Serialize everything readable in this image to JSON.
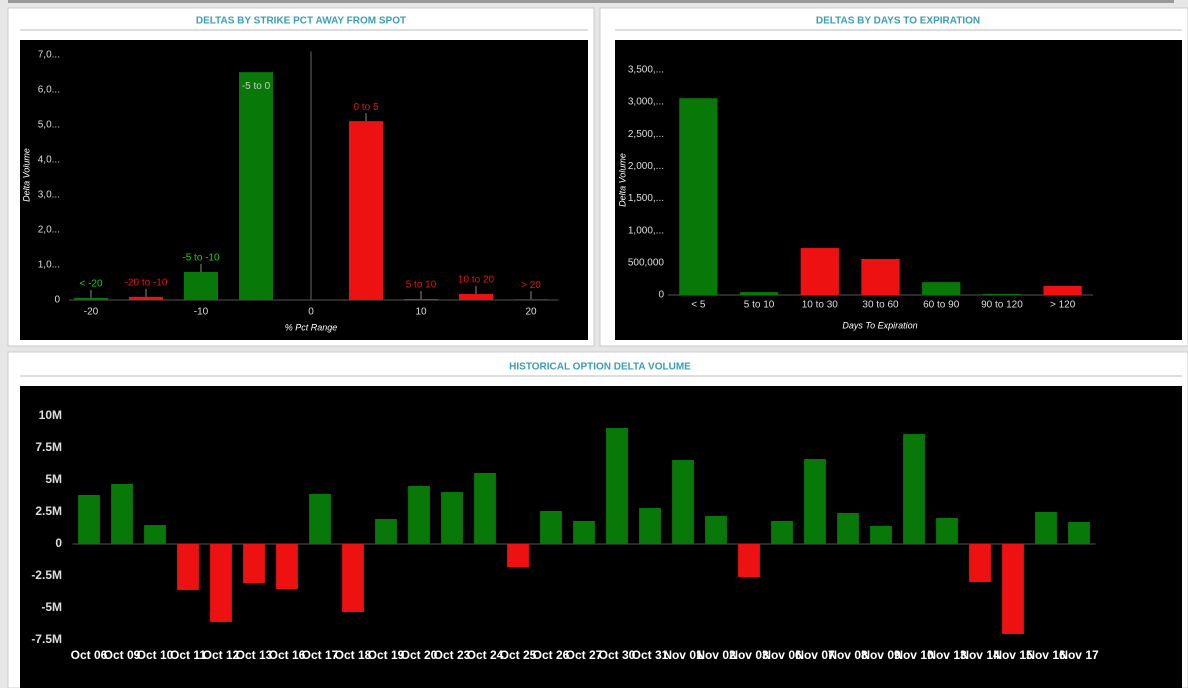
{
  "chart_data": [
    {
      "type": "bar",
      "title": "DELTAS BY STRIKE PCT AWAY FROM SPOT",
      "x_label": "% Pct Range",
      "y_label": "Delta Volume",
      "categories": [
        "< -20",
        "-20 to -10",
        "-5 to -10",
        "-5 to 0",
        "0 to 5",
        "5 to 10",
        "10 to 20",
        "> 20"
      ],
      "x": [
        -20,
        -15,
        -10,
        -5,
        5,
        10,
        15,
        20
      ],
      "values": [
        60000,
        90000,
        800000,
        6510000,
        5110000,
        30000,
        170000,
        20000
      ],
      "colors": [
        "#087808",
        "#ee1111",
        "#087808",
        "#087808",
        "#ee1111",
        "#ee1111",
        "#ee1111",
        "#ee1111"
      ],
      "xlim": [
        -22,
        22.5
      ],
      "xticks": [
        -20,
        -10,
        0,
        10,
        20
      ],
      "ylim": [
        0,
        7100000
      ],
      "yticks": [
        0,
        {
          "value": 1000000,
          "label": "1,0..."
        },
        {
          "value": 2000000,
          "label": "2,0..."
        },
        {
          "value": 3000000,
          "label": "3,0..."
        },
        {
          "value": 4000000,
          "label": "4,0..."
        },
        {
          "value": 5000000,
          "label": "5,0..."
        },
        {
          "value": 6000000,
          "label": "6,0..."
        },
        {
          "value": 7000000,
          "label": "7,0..."
        }
      ],
      "zero_line": true
    },
    {
      "type": "bar",
      "title": "DELTAS BY DAYS TO EXPIRATION",
      "x_label": "Days To Expiration",
      "y_label": "Delta Volume",
      "categories": [
        "< 5",
        "5 to 10",
        "10 to 30",
        "30 to 60",
        "60 to 90",
        "90 to 120",
        "> 120"
      ],
      "values": [
        3060000,
        45000,
        730000,
        560000,
        200000,
        15000,
        140000
      ],
      "colors": [
        "#087808",
        "#087808",
        "#ee1111",
        "#ee1111",
        "#087808",
        "#087808",
        "#ee1111"
      ],
      "ylim": [
        0,
        3650000
      ],
      "yticks": [
        0,
        {
          "value": 500000,
          "label": "500,000"
        },
        {
          "value": 1000000,
          "label": "1,000,..."
        },
        {
          "value": 1500000,
          "label": "1,500,..."
        },
        {
          "value": 2000000,
          "label": "2,000,..."
        },
        {
          "value": 2500000,
          "label": "2,500,..."
        },
        {
          "value": 3000000,
          "label": "3,000,..."
        },
        {
          "value": 3500000,
          "label": "3,500,..."
        }
      ]
    },
    {
      "type": "bar",
      "title": "HISTORICAL OPTION DELTA VOLUME",
      "categories": [
        "Oct 06",
        "Oct 09",
        "Oct 10",
        "Oct 11",
        "Oct 12",
        "Oct 13",
        "Oct 16",
        "Oct 17",
        "Oct 18",
        "Oct 19",
        "Oct 20",
        "Oct 23",
        "Oct 24",
        "Oct 25",
        "Oct 26",
        "Oct 27",
        "Oct 30",
        "Oct 31",
        "Nov 01",
        "Nov 02",
        "Nov 03",
        "Nov 06",
        "Nov 07",
        "Nov 08",
        "Nov 09",
        "Nov 10",
        "Nov 13",
        "Nov 14",
        "Nov 15",
        "Nov 16",
        "Nov 17"
      ],
      "values": [
        3830000,
        4690000,
        1480000,
        -3590000,
        -6090000,
        -3050000,
        -3520000,
        3910000,
        -5310000,
        1950000,
        4530000,
        4060000,
        5550000,
        -1800000,
        2580000,
        1800000,
        9060000,
        2810000,
        6560000,
        2190000,
        -2580000,
        1800000,
        6640000,
        2420000,
        1410000,
        8590000,
        2030000,
        -2970000,
        -7030000,
        2500000,
        1720000
      ],
      "positive_color": "#087808",
      "negative_color": "#ee1111",
      "ylim": [
        -8000000,
        11000000
      ],
      "yticks": [
        {
          "value": -7500000,
          "label": "-7.5M"
        },
        {
          "value": -5000000,
          "label": "-5M"
        },
        {
          "value": -2500000,
          "label": "-2.5M"
        },
        0,
        {
          "value": 2500000,
          "label": "2.5M"
        },
        {
          "value": 5000000,
          "label": "5M"
        },
        {
          "value": 7500000,
          "label": "7.5M"
        },
        {
          "value": 10000000,
          "label": "10M"
        }
      ]
    }
  ]
}
